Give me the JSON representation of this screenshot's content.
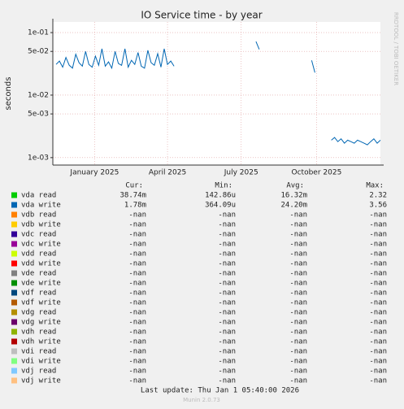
{
  "chart_data": {
    "type": "line",
    "title": "IO Service time - by year",
    "ylabel": "seconds",
    "log_y": true,
    "grid": true,
    "side_text": "RRDTOOL / TOBI OETIKER",
    "xlim": [
      0,
      400
    ],
    "xticks": [
      {
        "value": 51,
        "label": "January 2025"
      },
      {
        "value": 140,
        "label": "April 2025"
      },
      {
        "value": 230,
        "label": "July 2025"
      },
      {
        "value": 322,
        "label": "October 2025"
      }
    ],
    "ylim": [
      0.00076,
      0.148
    ],
    "yticks": [
      {
        "value": 0.1,
        "label": "1e-01"
      },
      {
        "value": 0.05,
        "label": "5e-02"
      },
      {
        "value": 0.01,
        "label": "1e-02"
      },
      {
        "value": 0.005,
        "label": "5e-03"
      },
      {
        "value": 0.001,
        "label": "1e-03"
      }
    ],
    "x": [
      0,
      4,
      8,
      12,
      16,
      20,
      24,
      28,
      32,
      36,
      40,
      44,
      48,
      52,
      56,
      60,
      64,
      68,
      72,
      76,
      80,
      84,
      88,
      92,
      96,
      100,
      104,
      108,
      112,
      116,
      120,
      124,
      128,
      132,
      136,
      140,
      144,
      148,
      152,
      156,
      160,
      164,
      168,
      172,
      176,
      180,
      184,
      188,
      192,
      196,
      200,
      204,
      208,
      212,
      216,
      220,
      224,
      228,
      232,
      236,
      240,
      244,
      248,
      252,
      256,
      260,
      264,
      268,
      272,
      276,
      280,
      284,
      288,
      292,
      296,
      300,
      304,
      308,
      312,
      316,
      320,
      324,
      328,
      332,
      336,
      340,
      344,
      348,
      352,
      356,
      360,
      364,
      368,
      372,
      376,
      380,
      384,
      388,
      392,
      396,
      400
    ],
    "legend_headers": [
      "Cur:",
      "Min:",
      "Avg:",
      "Max:"
    ],
    "series": [
      {
        "name": "vda read",
        "color": "#00cc00",
        "cur": "38.74m",
        "min": "142.86u",
        "avg": "16.32m",
        "max": "2.32"
      },
      {
        "name": "vda write",
        "color": "#0066b3",
        "cur": "1.78m",
        "min": "364.09u",
        "avg": "24.20m",
        "max": "3.56",
        "values": [
          null,
          0.031,
          0.035,
          0.028,
          0.04,
          0.03,
          0.027,
          0.045,
          0.033,
          0.029,
          0.05,
          0.031,
          0.028,
          0.042,
          0.03,
          0.055,
          0.029,
          0.034,
          0.027,
          0.05,
          0.032,
          0.03,
          0.055,
          0.028,
          0.036,
          0.031,
          0.048,
          0.029,
          0.027,
          0.052,
          0.033,
          0.03,
          0.046,
          0.028,
          0.055,
          0.031,
          0.035,
          0.029,
          null,
          null,
          null,
          null,
          null,
          null,
          null,
          null,
          null,
          null,
          null,
          null,
          null,
          null,
          null,
          null,
          null,
          null,
          null,
          null,
          null,
          null,
          null,
          null,
          0.072,
          0.054,
          null,
          null,
          null,
          null,
          null,
          null,
          null,
          null,
          null,
          null,
          null,
          null,
          null,
          null,
          null,
          0.036,
          0.023,
          null,
          null,
          null,
          null,
          0.0019,
          0.0021,
          0.0018,
          0.002,
          0.0017,
          0.0019,
          0.0018,
          0.0017,
          0.0019,
          0.0018,
          0.0017,
          0.0016,
          0.0018,
          0.002,
          0.0017,
          0.0019
        ]
      },
      {
        "name": "vdb read",
        "color": "#ff8000",
        "cur": "-nan",
        "min": "-nan",
        "avg": "-nan",
        "max": "-nan"
      },
      {
        "name": "vdb write",
        "color": "#ffcc00",
        "cur": "-nan",
        "min": "-nan",
        "avg": "-nan",
        "max": "-nan"
      },
      {
        "name": "vdc read",
        "color": "#330099",
        "cur": "-nan",
        "min": "-nan",
        "avg": "-nan",
        "max": "-nan"
      },
      {
        "name": "vdc write",
        "color": "#990099",
        "cur": "-nan",
        "min": "-nan",
        "avg": "-nan",
        "max": "-nan"
      },
      {
        "name": "vdd read",
        "color": "#ccff00",
        "cur": "-nan",
        "min": "-nan",
        "avg": "-nan",
        "max": "-nan"
      },
      {
        "name": "vdd write",
        "color": "#ff0000",
        "cur": "-nan",
        "min": "-nan",
        "avg": "-nan",
        "max": "-nan"
      },
      {
        "name": "vde read",
        "color": "#808080",
        "cur": "-nan",
        "min": "-nan",
        "avg": "-nan",
        "max": "-nan"
      },
      {
        "name": "vde write",
        "color": "#008f00",
        "cur": "-nan",
        "min": "-nan",
        "avg": "-nan",
        "max": "-nan"
      },
      {
        "name": "vdf read",
        "color": "#00487d",
        "cur": "-nan",
        "min": "-nan",
        "avg": "-nan",
        "max": "-nan"
      },
      {
        "name": "vdf write",
        "color": "#b35a00",
        "cur": "-nan",
        "min": "-nan",
        "avg": "-nan",
        "max": "-nan"
      },
      {
        "name": "vdg read",
        "color": "#b38f00",
        "cur": "-nan",
        "min": "-nan",
        "avg": "-nan",
        "max": "-nan"
      },
      {
        "name": "vdg write",
        "color": "#6b006b",
        "cur": "-nan",
        "min": "-nan",
        "avg": "-nan",
        "max": "-nan"
      },
      {
        "name": "vdh read",
        "color": "#8fb300",
        "cur": "-nan",
        "min": "-nan",
        "avg": "-nan",
        "max": "-nan"
      },
      {
        "name": "vdh write",
        "color": "#b30000",
        "cur": "-nan",
        "min": "-nan",
        "avg": "-nan",
        "max": "-nan"
      },
      {
        "name": "vdi read",
        "color": "#bebebe",
        "cur": "-nan",
        "min": "-nan",
        "avg": "-nan",
        "max": "-nan"
      },
      {
        "name": "vdi write",
        "color": "#80ff80",
        "cur": "-nan",
        "min": "-nan",
        "avg": "-nan",
        "max": "-nan"
      },
      {
        "name": "vdj read",
        "color": "#80c9ff",
        "cur": "-nan",
        "min": "-nan",
        "avg": "-nan",
        "max": "-nan"
      },
      {
        "name": "vdj write",
        "color": "#ffc080",
        "cur": "-nan",
        "min": "-nan",
        "avg": "-nan",
        "max": "-nan"
      }
    ],
    "last_update": "Last update: Thu Jan  1 05:40:00 2026",
    "footer": "Munin 2.0.73"
  }
}
